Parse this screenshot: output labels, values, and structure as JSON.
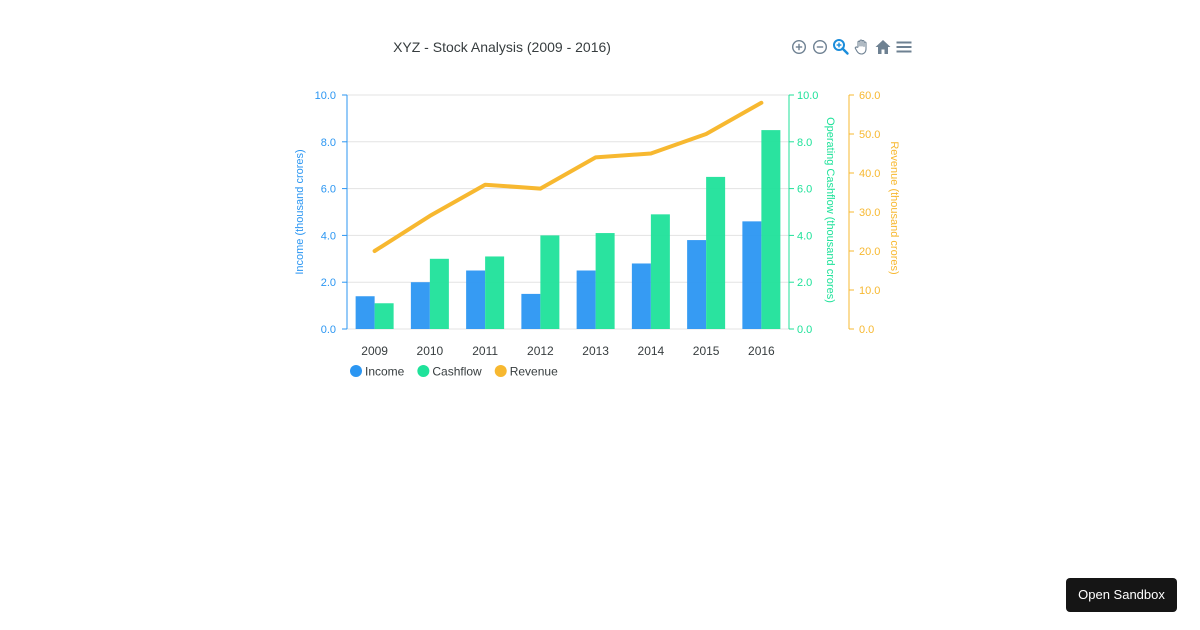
{
  "chart_data": {
    "type": "bar",
    "title": "XYZ - Stock Analysis (2009 - 2016)",
    "categories": [
      "2009",
      "2010",
      "2011",
      "2012",
      "2013",
      "2014",
      "2015",
      "2016"
    ],
    "series": [
      {
        "name": "Income",
        "type": "bar",
        "axis": "left",
        "values": [
          1.4,
          2.0,
          2.5,
          1.5,
          2.5,
          2.8,
          3.8,
          4.6
        ]
      },
      {
        "name": "Cashflow",
        "type": "bar",
        "axis": "right1",
        "values": [
          1.1,
          3.0,
          3.1,
          4.0,
          4.1,
          4.9,
          6.5,
          8.5
        ]
      },
      {
        "name": "Revenue",
        "type": "line",
        "axis": "right2",
        "values": [
          20.0,
          29.0,
          37.0,
          36.0,
          44.0,
          45.0,
          50.0,
          58.0
        ]
      }
    ],
    "axes": {
      "left": {
        "label": "Income (thousand crores)",
        "min": 0,
        "max": 10,
        "ticks": [
          "0.0",
          "2.0",
          "4.0",
          "6.0",
          "8.0",
          "10.0"
        ]
      },
      "right1": {
        "label": "Operating Cashflow (thousand crores)",
        "min": 0,
        "max": 10,
        "ticks": [
          "0.0",
          "2.0",
          "4.0",
          "6.0",
          "8.0",
          "10.0"
        ]
      },
      "right2": {
        "label": "Revenue (thousand crores)",
        "min": 0,
        "max": 60,
        "ticks": [
          "0.0",
          "10.0",
          "20.0",
          "30.0",
          "40.0",
          "50.0",
          "60.0"
        ]
      }
    },
    "legend": [
      "Income",
      "Cashflow",
      "Revenue"
    ],
    "legend_position": "bottom-left",
    "grid": true
  },
  "colors": {
    "income": "#2b96f2",
    "cashflow": "#1fe29a",
    "revenue": "#f7b830",
    "left_axis": "#2b96f2",
    "right1_axis": "#1fe29a",
    "right2_axis": "#f7b830",
    "grid": "#e3e3e3",
    "toolbar_icon": "#6e8192",
    "toolbar_active": "#1b8ddb"
  },
  "toolbar": {
    "icons": [
      "zoom-in-icon",
      "zoom-out-icon",
      "zoom-select-icon",
      "pan-hand-icon",
      "home-reset-icon",
      "menu-icon"
    ]
  },
  "sandbox": {
    "label": "Open Sandbox"
  }
}
